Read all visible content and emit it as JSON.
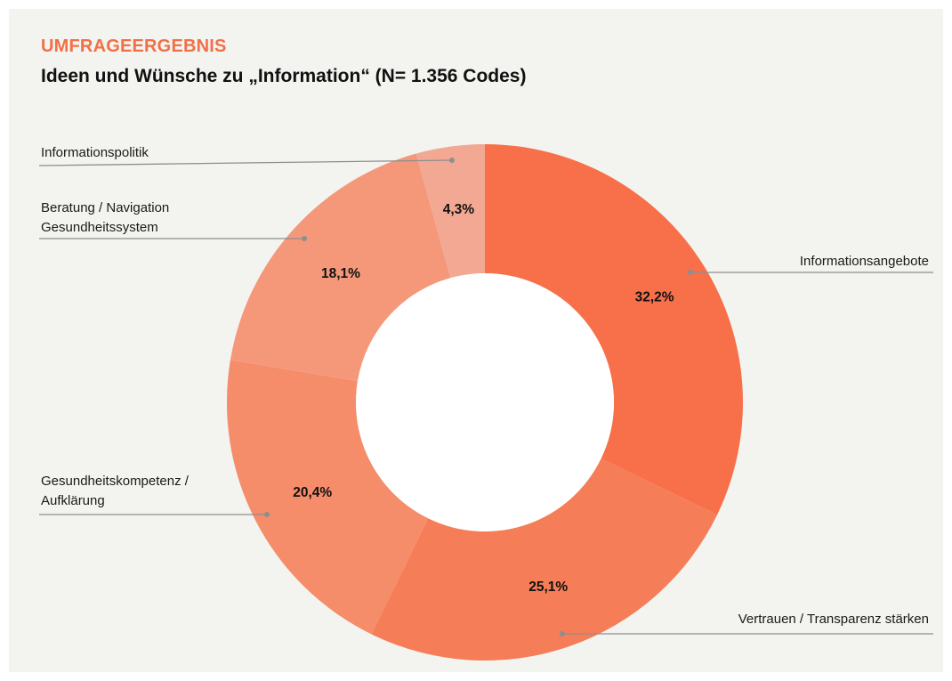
{
  "header": {
    "overline": "UMFRAGEERGEBNIS",
    "title": "Ideen und Wünsche zu „Information“ (N= 1.356 Codes)"
  },
  "colors": {
    "background": "#f3f4f0",
    "overline": "#f36f45",
    "leader_line": "#8e8e8e",
    "hole": "#ffffff"
  },
  "chart_data": {
    "type": "pie",
    "variant": "donut",
    "title": "Ideen und Wünsche zu „Information“ (N= 1.356 Codes)",
    "total_n": 1356,
    "slices": [
      {
        "label": "Informationsangebote",
        "value": 32.2,
        "display": "32,2%",
        "color": "#f7704a"
      },
      {
        "label": "Vertrauen / Transparenz stärken",
        "value": 25.1,
        "display": "25,1%",
        "color": "#f57d57"
      },
      {
        "label": "Gesundheitskompetenz / Aufklärung",
        "value": 20.4,
        "display": "20,4%",
        "color": "#f58c6a"
      },
      {
        "label": "Beratung / Navigation Gesundheitssystem",
        "value": 18.1,
        "display": "18,1%",
        "color": "#f5987a"
      },
      {
        "label": "Informationspolitik",
        "value": 4.3,
        "display": "4,3%",
        "color": "#f3a893"
      }
    ]
  }
}
